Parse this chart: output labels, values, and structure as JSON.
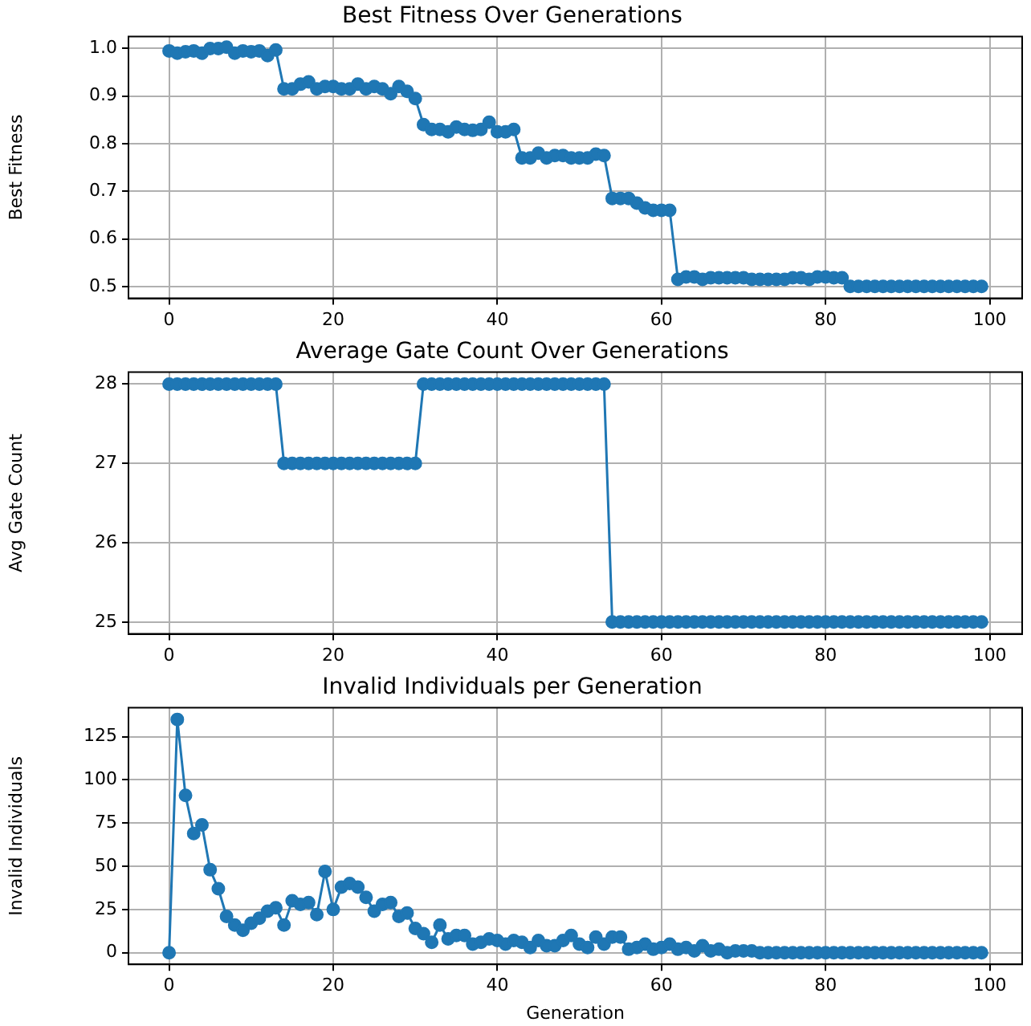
{
  "chart_data": [
    {
      "type": "line",
      "title": "Best Fitness Over Generations",
      "ylabel": "Best Fitness",
      "x": [
        0,
        1,
        2,
        3,
        4,
        5,
        6,
        7,
        8,
        9,
        10,
        11,
        12,
        13,
        14,
        15,
        16,
        17,
        18,
        19,
        20,
        21,
        22,
        23,
        24,
        25,
        26,
        27,
        28,
        29,
        30,
        31,
        32,
        33,
        34,
        35,
        36,
        37,
        38,
        39,
        40,
        41,
        42,
        43,
        44,
        45,
        46,
        47,
        48,
        49,
        50,
        51,
        52,
        53,
        54,
        55,
        56,
        57,
        58,
        59,
        60,
        61,
        62,
        63,
        64,
        65,
        66,
        67,
        68,
        69,
        70,
        71,
        72,
        73,
        74,
        75,
        76,
        77,
        78,
        79,
        80,
        81,
        82,
        83,
        84,
        85,
        86,
        87,
        88,
        89,
        90,
        91,
        92,
        93,
        94,
        95,
        96,
        97,
        98,
        99
      ],
      "series": [
        {
          "color": "#1f77b4",
          "values": [
            0.995,
            0.99,
            0.993,
            0.995,
            0.99,
            1.0,
            1.0,
            1.003,
            0.99,
            0.995,
            0.993,
            0.995,
            0.985,
            0.997,
            0.915,
            0.915,
            0.925,
            0.93,
            0.915,
            0.92,
            0.92,
            0.915,
            0.915,
            0.925,
            0.915,
            0.92,
            0.915,
            0.905,
            0.92,
            0.91,
            0.895,
            0.84,
            0.83,
            0.83,
            0.825,
            0.835,
            0.83,
            0.828,
            0.83,
            0.845,
            0.825,
            0.825,
            0.83,
            0.77,
            0.77,
            0.78,
            0.77,
            0.775,
            0.775,
            0.77,
            0.77,
            0.77,
            0.778,
            0.775,
            0.685,
            0.685,
            0.685,
            0.675,
            0.665,
            0.66,
            0.66,
            0.66,
            0.515,
            0.52,
            0.52,
            0.515,
            0.518,
            0.518,
            0.518,
            0.518,
            0.518,
            0.515,
            0.515,
            0.515,
            0.515,
            0.515,
            0.518,
            0.518,
            0.515,
            0.52,
            0.52,
            0.518,
            0.518,
            0.5,
            0.5,
            0.5,
            0.5,
            0.5,
            0.5,
            0.5,
            0.5,
            0.5,
            0.5,
            0.5,
            0.5,
            0.5,
            0.5,
            0.5,
            0.5,
            0.5
          ]
        }
      ],
      "xlim": [
        -4.95,
        103.95
      ],
      "xticks": [
        0,
        20,
        40,
        60,
        80,
        100
      ],
      "ylim": [
        0.475,
        1.025
      ],
      "yticks": [
        {
          "value": 0.5,
          "label": "0.5"
        },
        {
          "value": 0.6,
          "label": "0.6"
        },
        {
          "value": 0.7,
          "label": "0.7"
        },
        {
          "value": 0.8,
          "label": "0.8"
        },
        {
          "value": 0.9,
          "label": "0.9"
        },
        {
          "value": 1.0,
          "label": "1.0"
        }
      ],
      "grid": true,
      "marker": "circle",
      "line_style": "solid",
      "legend": false
    },
    {
      "type": "line",
      "title": "Average Gate Count Over Generations",
      "ylabel": "Avg Gate Count",
      "x": [
        0,
        1,
        2,
        3,
        4,
        5,
        6,
        7,
        8,
        9,
        10,
        11,
        12,
        13,
        14,
        15,
        16,
        17,
        18,
        19,
        20,
        21,
        22,
        23,
        24,
        25,
        26,
        27,
        28,
        29,
        30,
        31,
        32,
        33,
        34,
        35,
        36,
        37,
        38,
        39,
        40,
        41,
        42,
        43,
        44,
        45,
        46,
        47,
        48,
        49,
        50,
        51,
        52,
        53,
        54,
        55,
        56,
        57,
        58,
        59,
        60,
        61,
        62,
        63,
        64,
        65,
        66,
        67,
        68,
        69,
        70,
        71,
        72,
        73,
        74,
        75,
        76,
        77,
        78,
        79,
        80,
        81,
        82,
        83,
        84,
        85,
        86,
        87,
        88,
        89,
        90,
        91,
        92,
        93,
        94,
        95,
        96,
        97,
        98,
        99
      ],
      "series": [
        {
          "color": "#1f77b4",
          "values": [
            28,
            28,
            28,
            28,
            28,
            28,
            28,
            28,
            28,
            28,
            28,
            28,
            28,
            28,
            27,
            27,
            27,
            27,
            27,
            27,
            27,
            27,
            27,
            27,
            27,
            27,
            27,
            27,
            27,
            27,
            27,
            28,
            28,
            28,
            28,
            28,
            28,
            28,
            28,
            28,
            28,
            28,
            28,
            28,
            28,
            28,
            28,
            28,
            28,
            28,
            28,
            28,
            28,
            28,
            25,
            25,
            25,
            25,
            25,
            25,
            25,
            25,
            25,
            25,
            25,
            25,
            25,
            25,
            25,
            25,
            25,
            25,
            25,
            25,
            25,
            25,
            25,
            25,
            25,
            25,
            25,
            25,
            25,
            25,
            25,
            25,
            25,
            25,
            25,
            25,
            25,
            25,
            25,
            25,
            25,
            25,
            25,
            25,
            25,
            25
          ]
        }
      ],
      "xlim": [
        -4.95,
        103.95
      ],
      "xticks": [
        0,
        20,
        40,
        60,
        80,
        100
      ],
      "ylim": [
        24.85,
        28.15
      ],
      "yticks": [
        25,
        26,
        27,
        28
      ],
      "grid": true,
      "marker": "circle",
      "line_style": "solid",
      "legend": false
    },
    {
      "type": "line",
      "title": "Invalid Individuals per Generation",
      "xlabel": "Generation",
      "ylabel": "Invalid Individuals",
      "x": [
        0,
        1,
        2,
        3,
        4,
        5,
        6,
        7,
        8,
        9,
        10,
        11,
        12,
        13,
        14,
        15,
        16,
        17,
        18,
        19,
        20,
        21,
        22,
        23,
        24,
        25,
        26,
        27,
        28,
        29,
        30,
        31,
        32,
        33,
        34,
        35,
        36,
        37,
        38,
        39,
        40,
        41,
        42,
        43,
        44,
        45,
        46,
        47,
        48,
        49,
        50,
        51,
        52,
        53,
        54,
        55,
        56,
        57,
        58,
        59,
        60,
        61,
        62,
        63,
        64,
        65,
        66,
        67,
        68,
        69,
        70,
        71,
        72,
        73,
        74,
        75,
        76,
        77,
        78,
        79,
        80,
        81,
        82,
        83,
        84,
        85,
        86,
        87,
        88,
        89,
        90,
        91,
        92,
        93,
        94,
        95,
        96,
        97,
        98,
        99
      ],
      "series": [
        {
          "color": "#1f77b4",
          "values": [
            0,
            135,
            91,
            69,
            74,
            48,
            37,
            21,
            16,
            13,
            17,
            20,
            24,
            26,
            16,
            30,
            28,
            29,
            22,
            47,
            25,
            38,
            40,
            38,
            32,
            24,
            28,
            29,
            21,
            23,
            14,
            11,
            6,
            16,
            8,
            10,
            10,
            5,
            6,
            8,
            7,
            5,
            7,
            6,
            3,
            7,
            4,
            4,
            7,
            10,
            5,
            3,
            9,
            5,
            9,
            9,
            2,
            3,
            5,
            2,
            3,
            5,
            2,
            3,
            1,
            4,
            1,
            2,
            0,
            1,
            1,
            1,
            0,
            0,
            0,
            0,
            0,
            0,
            0,
            0,
            0,
            0,
            0,
            0,
            0,
            0,
            0,
            0,
            0,
            0,
            0,
            0,
            0,
            0,
            0,
            0,
            0,
            0,
            0,
            0
          ]
        }
      ],
      "xlim": [
        -4.95,
        103.95
      ],
      "xticks": [
        0,
        20,
        40,
        60,
        80,
        100
      ],
      "ylim": [
        -6.75,
        141.75
      ],
      "yticks": [
        0,
        25,
        50,
        75,
        100,
        125
      ],
      "grid": true,
      "marker": "circle",
      "line_style": "solid",
      "legend": false
    }
  ]
}
